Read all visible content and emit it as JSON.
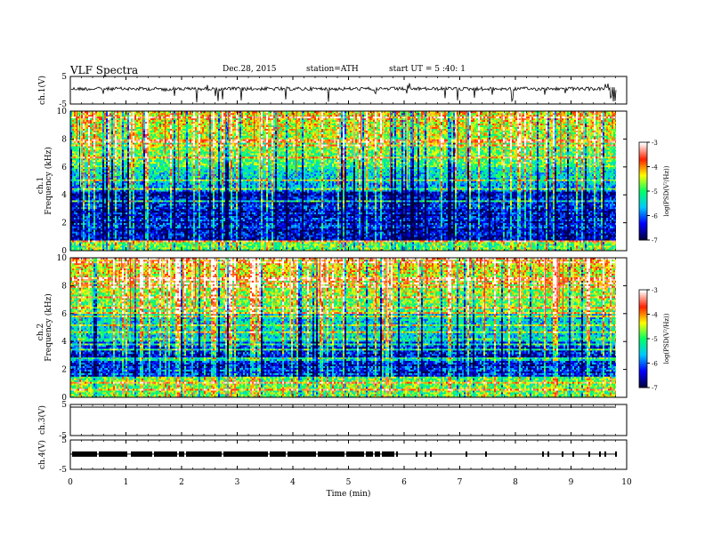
{
  "header": {
    "title": "VLF  Spectra",
    "date": "Dec.28, 2015",
    "station": "station=ATH",
    "start": "start  UT  =   5  :40: 1"
  },
  "chart_data": {
    "type": "heatmap",
    "x": {
      "label": "Time  (min)",
      "range": [
        0,
        10
      ],
      "ticks": [
        0,
        1,
        2,
        3,
        4,
        5,
        6,
        7,
        8,
        9,
        10
      ]
    },
    "panels": [
      {
        "id": "ch1-wave",
        "type": "line",
        "ylabel": "ch.1(V)",
        "ylim": [
          -5,
          5
        ],
        "yticks": [
          "5",
          "-5"
        ]
      },
      {
        "id": "ch1-spec",
        "type": "heatmap",
        "ylabel": "Frequency  (kHz)",
        "ylabel2": "ch.1",
        "ylim": [
          0,
          10
        ],
        "yticks": [
          "0",
          "2",
          "4",
          "6",
          "8",
          "10"
        ]
      },
      {
        "id": "ch2-spec",
        "type": "heatmap",
        "ylabel": "Frequency  (kHz)",
        "ylabel2": "ch.2",
        "ylim": [
          0,
          10
        ],
        "yticks": [
          "0",
          "2",
          "4",
          "6",
          "8",
          "10"
        ]
      },
      {
        "id": "ch3-wave",
        "type": "line",
        "ylabel": "ch.3(V)",
        "ylim": [
          -5,
          5
        ],
        "yticks": [
          "5",
          "-5"
        ]
      },
      {
        "id": "ch4-wave",
        "type": "line",
        "ylabel": "ch.4(V)",
        "ylim": [
          -5,
          5
        ],
        "yticks": [
          "5",
          "-5"
        ]
      }
    ],
    "colorbar": {
      "label": "log(PSD(V²/Hz))",
      "range": [
        -7,
        -3
      ],
      "ticks": [
        "-3",
        "-4",
        "-5",
        "-6",
        "-7"
      ],
      "colors": [
        "#000040",
        "#0000ff",
        "#00c8ff",
        "#00ff66",
        "#ffff00",
        "#ff2000",
        "#ffffff"
      ]
    }
  }
}
